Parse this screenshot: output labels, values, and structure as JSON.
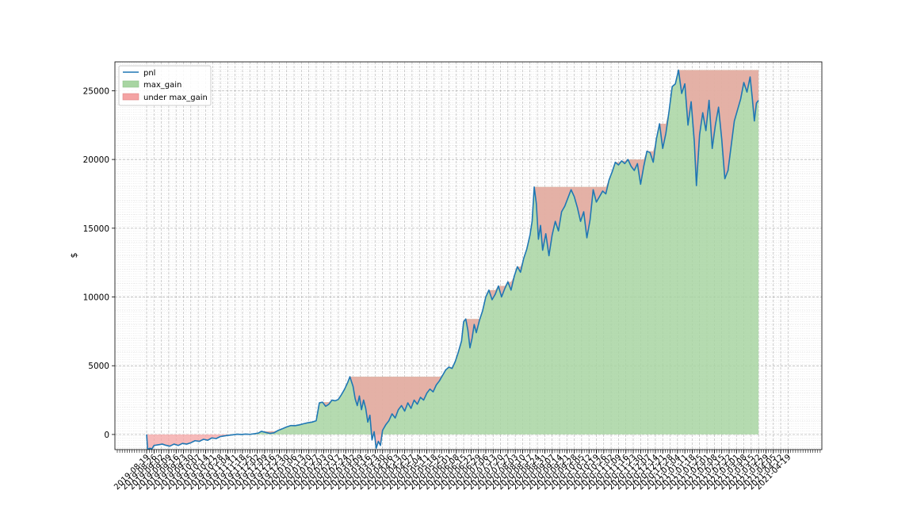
{
  "chart_data": {
    "type": "area",
    "title": "",
    "xlabel": "",
    "ylabel": "$",
    "ylim": [
      -1100,
      27100
    ],
    "yticks": [
      0,
      5000,
      10000,
      15000,
      20000,
      25000
    ],
    "grid": true,
    "legend_position": "top-left",
    "x_start": "2019-08-19",
    "x_end": "2021-04-21",
    "xticks": [
      "2019-08-19",
      "2019-08-26",
      "2019-09-02",
      "2019-09-09",
      "2019-09-16",
      "2019-09-23",
      "2019-09-30",
      "2019-10-07",
      "2019-10-14",
      "2019-10-21",
      "2019-10-28",
      "2019-11-04",
      "2019-11-11",
      "2019-11-18",
      "2019-11-25",
      "2019-12-02",
      "2019-12-09",
      "2019-12-16",
      "2019-12-23",
      "2019-12-30",
      "2020-01-06",
      "2020-01-13",
      "2020-01-20",
      "2020-01-27",
      "2020-02-03",
      "2020-02-10",
      "2020-02-17",
      "2020-02-24",
      "2020-03-02",
      "2020-03-09",
      "2020-03-16",
      "2020-03-23",
      "2020-03-30",
      "2020-04-06",
      "2020-04-13",
      "2020-04-20",
      "2020-04-27",
      "2020-05-04",
      "2020-05-11",
      "2020-05-18",
      "2020-05-25",
      "2020-06-01",
      "2020-06-08",
      "2020-06-15",
      "2020-06-22",
      "2020-06-29",
      "2020-07-06",
      "2020-07-13",
      "2020-07-20",
      "2020-07-27",
      "2020-08-03",
      "2020-08-10",
      "2020-08-17",
      "2020-08-24",
      "2020-08-31",
      "2020-09-07",
      "2020-09-14",
      "2020-09-21",
      "2020-09-28",
      "2020-10-05",
      "2020-10-12",
      "2020-10-19",
      "2020-10-26",
      "2020-11-02",
      "2020-11-09",
      "2020-11-16",
      "2020-11-23",
      "2020-11-30",
      "2020-12-07",
      "2020-12-14",
      "2020-12-21",
      "2020-12-28",
      "2021-01-04",
      "2021-01-11",
      "2021-01-18",
      "2021-01-25",
      "2021-02-01",
      "2021-02-08",
      "2021-02-15",
      "2021-02-22",
      "2021-03-01",
      "2021-03-08",
      "2021-03-15",
      "2021-03-22",
      "2021-03-29",
      "2021-04-05",
      "2021-04-12",
      "2021-04-19"
    ],
    "series": [
      {
        "name": "pnl",
        "color": "#1f77b4"
      },
      {
        "name": "max_gain",
        "color": "#a8d5a2"
      },
      {
        "name": "under max_gain",
        "color": "#f4a3a3"
      }
    ],
    "pnl_points": [
      [
        "2019-08-19",
        0
      ],
      [
        "2019-08-20",
        -1100
      ],
      [
        "2019-08-22",
        -1000
      ],
      [
        "2019-08-24",
        -1050
      ],
      [
        "2019-08-26",
        -800
      ],
      [
        "2019-08-30",
        -750
      ],
      [
        "2019-09-03",
        -700
      ],
      [
        "2019-09-06",
        -780
      ],
      [
        "2019-09-10",
        -850
      ],
      [
        "2019-09-14",
        -700
      ],
      [
        "2019-09-18",
        -800
      ],
      [
        "2019-09-22",
        -650
      ],
      [
        "2019-09-26",
        -700
      ],
      [
        "2019-09-30",
        -600
      ],
      [
        "2019-10-04",
        -450
      ],
      [
        "2019-10-08",
        -500
      ],
      [
        "2019-10-12",
        -350
      ],
      [
        "2019-10-16",
        -420
      ],
      [
        "2019-10-20",
        -250
      ],
      [
        "2019-10-24",
        -300
      ],
      [
        "2019-10-28",
        -150
      ],
      [
        "2019-11-01",
        -100
      ],
      [
        "2019-11-05",
        -60
      ],
      [
        "2019-11-09",
        -20
      ],
      [
        "2019-11-13",
        20
      ],
      [
        "2019-11-17",
        0
      ],
      [
        "2019-11-21",
        30
      ],
      [
        "2019-11-25",
        10
      ],
      [
        "2019-11-29",
        50
      ],
      [
        "2019-12-03",
        100
      ],
      [
        "2019-12-06",
        230
      ],
      [
        "2019-12-10",
        150
      ],
      [
        "2019-12-14",
        80
      ],
      [
        "2019-12-18",
        120
      ],
      [
        "2019-12-22",
        300
      ],
      [
        "2019-12-26",
        420
      ],
      [
        "2019-12-30",
        550
      ],
      [
        "2020-01-03",
        650
      ],
      [
        "2020-01-07",
        640
      ],
      [
        "2020-01-11",
        700
      ],
      [
        "2020-01-15",
        780
      ],
      [
        "2020-01-19",
        850
      ],
      [
        "2020-01-23",
        900
      ],
      [
        "2020-01-27",
        1000
      ],
      [
        "2020-01-30",
        2300
      ],
      [
        "2020-02-02",
        2350
      ],
      [
        "2020-02-05",
        2050
      ],
      [
        "2020-02-08",
        2200
      ],
      [
        "2020-02-11",
        2500
      ],
      [
        "2020-02-14",
        2450
      ],
      [
        "2020-02-17",
        2550
      ],
      [
        "2020-02-20",
        2900
      ],
      [
        "2020-02-23",
        3300
      ],
      [
        "2020-02-26",
        3800
      ],
      [
        "2020-02-28",
        4200
      ],
      [
        "2020-03-02",
        3500
      ],
      [
        "2020-03-04",
        2600
      ],
      [
        "2020-03-06",
        2100
      ],
      [
        "2020-03-08",
        2800
      ],
      [
        "2020-03-10",
        1800
      ],
      [
        "2020-03-12",
        2500
      ],
      [
        "2020-03-14",
        1900
      ],
      [
        "2020-03-16",
        900
      ],
      [
        "2020-03-18",
        1400
      ],
      [
        "2020-03-20",
        -400
      ],
      [
        "2020-03-22",
        200
      ],
      [
        "2020-03-24",
        -1000
      ],
      [
        "2020-03-26",
        -500
      ],
      [
        "2020-03-28",
        -800
      ],
      [
        "2020-03-30",
        300
      ],
      [
        "2020-04-02",
        700
      ],
      [
        "2020-04-05",
        1000
      ],
      [
        "2020-04-08",
        1500
      ],
      [
        "2020-04-11",
        1200
      ],
      [
        "2020-04-14",
        1800
      ],
      [
        "2020-04-17",
        2100
      ],
      [
        "2020-04-20",
        1700
      ],
      [
        "2020-04-23",
        2300
      ],
      [
        "2020-04-26",
        1900
      ],
      [
        "2020-04-29",
        2500
      ],
      [
        "2020-05-02",
        2200
      ],
      [
        "2020-05-05",
        2700
      ],
      [
        "2020-05-08",
        2500
      ],
      [
        "2020-05-11",
        3000
      ],
      [
        "2020-05-14",
        3300
      ],
      [
        "2020-05-17",
        3100
      ],
      [
        "2020-05-20",
        3600
      ],
      [
        "2020-05-23",
        3900
      ],
      [
        "2020-05-26",
        4300
      ],
      [
        "2020-05-29",
        4700
      ],
      [
        "2020-06-01",
        4900
      ],
      [
        "2020-06-04",
        4800
      ],
      [
        "2020-06-07",
        5300
      ],
      [
        "2020-06-10",
        6000
      ],
      [
        "2020-06-13",
        6800
      ],
      [
        "2020-06-15",
        8200
      ],
      [
        "2020-06-17",
        8400
      ],
      [
        "2020-06-19",
        7600
      ],
      [
        "2020-06-21",
        6300
      ],
      [
        "2020-06-23",
        7000
      ],
      [
        "2020-06-25",
        8000
      ],
      [
        "2020-06-27",
        7400
      ],
      [
        "2020-06-30",
        8300
      ],
      [
        "2020-07-03",
        9000
      ],
      [
        "2020-07-06",
        10000
      ],
      [
        "2020-07-09",
        10500
      ],
      [
        "2020-07-12",
        9800
      ],
      [
        "2020-07-15",
        10200
      ],
      [
        "2020-07-18",
        10800
      ],
      [
        "2020-07-21",
        10000
      ],
      [
        "2020-07-24",
        10600
      ],
      [
        "2020-07-27",
        11100
      ],
      [
        "2020-07-30",
        10500
      ],
      [
        "2020-08-02",
        11500
      ],
      [
        "2020-08-05",
        12200
      ],
      [
        "2020-08-08",
        11800
      ],
      [
        "2020-08-11",
        12800
      ],
      [
        "2020-08-14",
        13500
      ],
      [
        "2020-08-17",
        14500
      ],
      [
        "2020-08-19",
        15500
      ],
      [
        "2020-08-21",
        18000
      ],
      [
        "2020-08-23",
        16800
      ],
      [
        "2020-08-25",
        14200
      ],
      [
        "2020-08-27",
        15200
      ],
      [
        "2020-08-29",
        13400
      ],
      [
        "2020-09-01",
        14600
      ],
      [
        "2020-09-04",
        13000
      ],
      [
        "2020-09-07",
        14500
      ],
      [
        "2020-09-10",
        15500
      ],
      [
        "2020-09-13",
        14800
      ],
      [
        "2020-09-16",
        16200
      ],
      [
        "2020-09-19",
        16600
      ],
      [
        "2020-09-22",
        17200
      ],
      [
        "2020-09-25",
        17800
      ],
      [
        "2020-09-28",
        17300
      ],
      [
        "2020-10-01",
        16500
      ],
      [
        "2020-10-04",
        15500
      ],
      [
        "2020-10-07",
        16200
      ],
      [
        "2020-10-10",
        14300
      ],
      [
        "2020-10-13",
        15600
      ],
      [
        "2020-10-16",
        17800
      ],
      [
        "2020-10-19",
        16900
      ],
      [
        "2020-10-22",
        17300
      ],
      [
        "2020-10-25",
        17700
      ],
      [
        "2020-10-28",
        17500
      ],
      [
        "2020-10-31",
        18500
      ],
      [
        "2020-11-03",
        19100
      ],
      [
        "2020-11-06",
        19800
      ],
      [
        "2020-11-09",
        19600
      ],
      [
        "2020-11-12",
        19900
      ],
      [
        "2020-11-15",
        19700
      ],
      [
        "2020-11-18",
        20000
      ],
      [
        "2020-11-21",
        19500
      ],
      [
        "2020-11-24",
        19200
      ],
      [
        "2020-11-27",
        19700
      ],
      [
        "2020-11-30",
        18200
      ],
      [
        "2020-12-03",
        19500
      ],
      [
        "2020-12-06",
        20600
      ],
      [
        "2020-12-09",
        20500
      ],
      [
        "2020-12-12",
        19800
      ],
      [
        "2020-12-15",
        21500
      ],
      [
        "2020-12-18",
        22600
      ],
      [
        "2020-12-21",
        20800
      ],
      [
        "2020-12-24",
        21900
      ],
      [
        "2020-12-27",
        23500
      ],
      [
        "2020-12-30",
        25300
      ],
      [
        "2021-01-02",
        25500
      ],
      [
        "2021-01-05",
        26500
      ],
      [
        "2021-01-08",
        24800
      ],
      [
        "2021-01-11",
        25500
      ],
      [
        "2021-01-14",
        22500
      ],
      [
        "2021-01-17",
        24200
      ],
      [
        "2021-01-20",
        21300
      ],
      [
        "2021-01-22",
        18100
      ],
      [
        "2021-01-25",
        21800
      ],
      [
        "2021-01-28",
        23400
      ],
      [
        "2021-01-31",
        22100
      ],
      [
        "2021-02-03",
        24300
      ],
      [
        "2021-02-06",
        20800
      ],
      [
        "2021-02-09",
        22500
      ],
      [
        "2021-02-12",
        23800
      ],
      [
        "2021-02-15",
        21500
      ],
      [
        "2021-02-18",
        18600
      ],
      [
        "2021-02-21",
        19200
      ],
      [
        "2021-02-24",
        21000
      ],
      [
        "2021-02-27",
        22800
      ],
      [
        "2021-03-02",
        23600
      ],
      [
        "2021-03-05",
        24400
      ],
      [
        "2021-03-08",
        25600
      ],
      [
        "2021-03-11",
        24900
      ],
      [
        "2021-03-14",
        26000
      ],
      [
        "2021-03-16",
        24500
      ],
      [
        "2021-03-18",
        22800
      ],
      [
        "2021-03-20",
        24100
      ],
      [
        "2021-03-22",
        24300
      ]
    ]
  }
}
